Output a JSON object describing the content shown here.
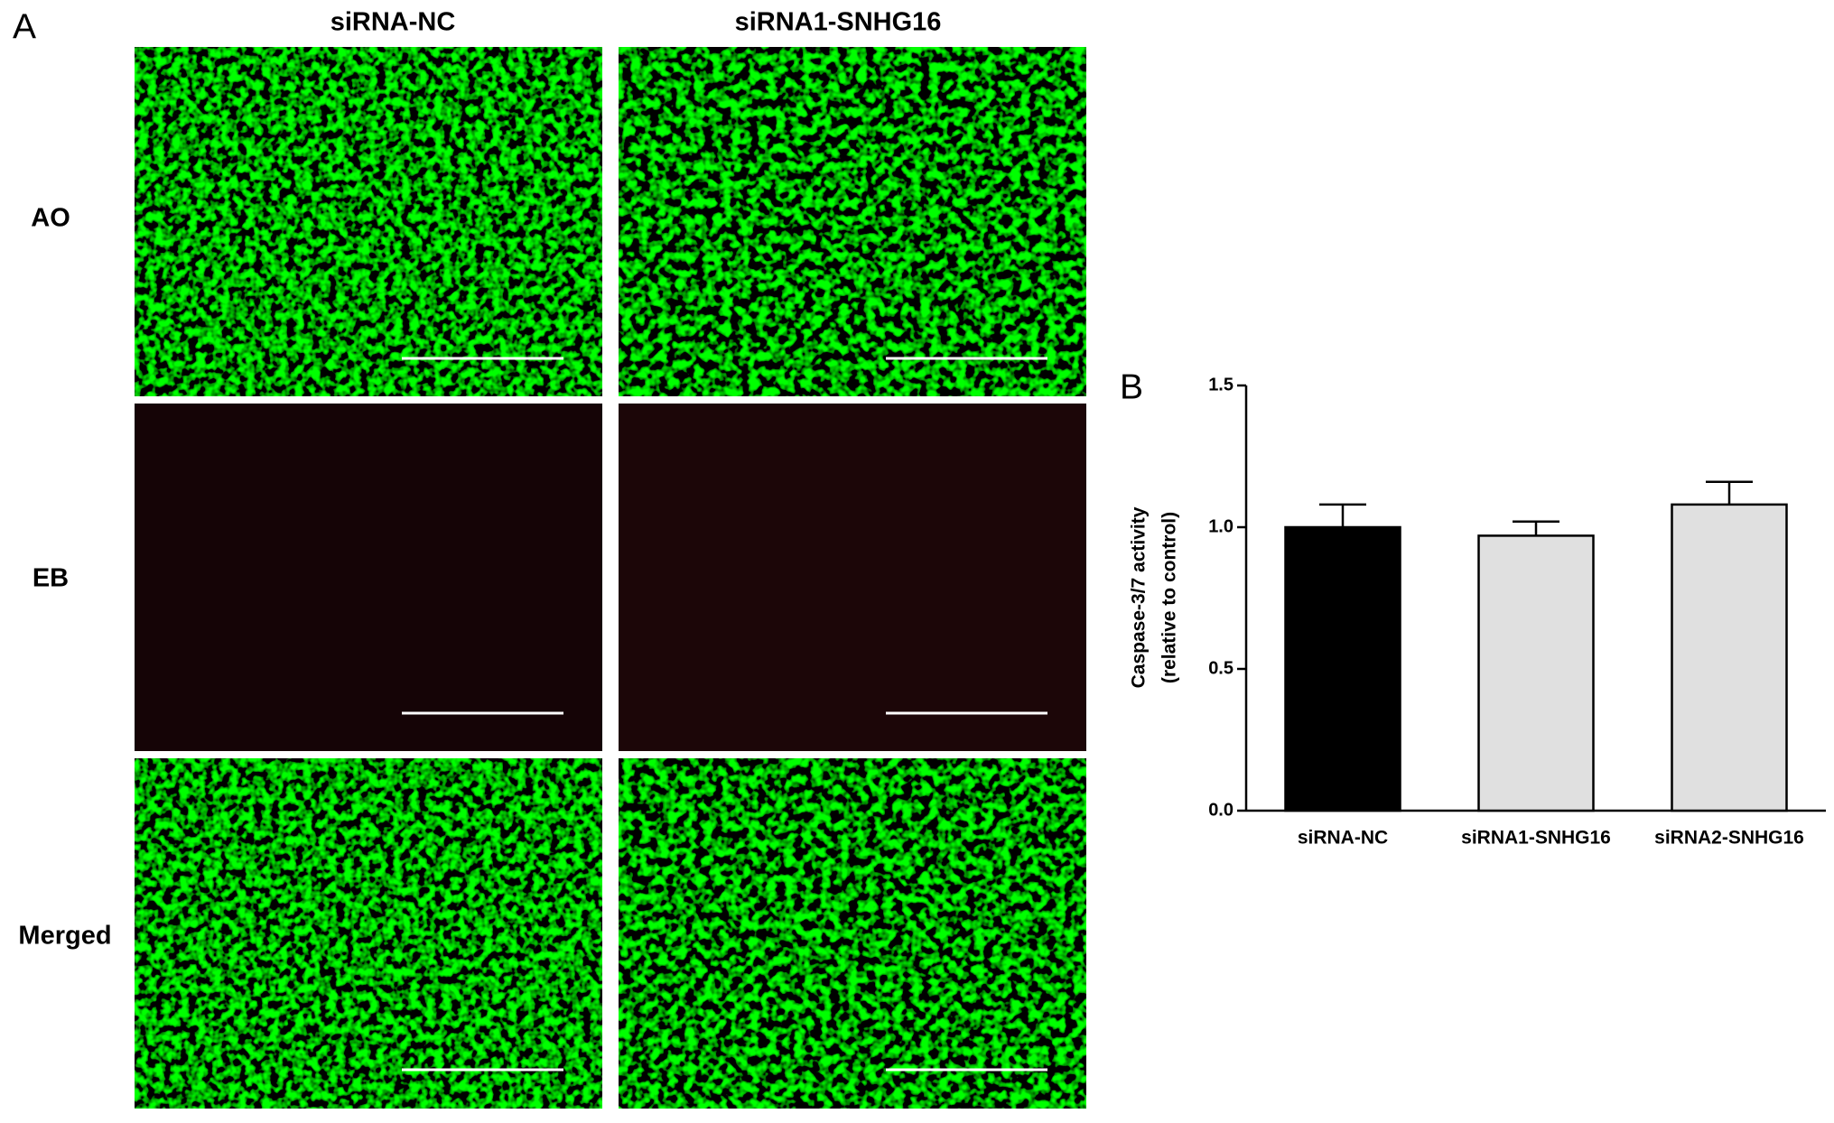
{
  "panel_a": {
    "label": "A",
    "columns": [
      "siRNA-NC",
      "siRNA1-SNHG16"
    ],
    "rows": [
      "AO",
      "EB",
      "Merged"
    ]
  },
  "chart_data": {
    "type": "bar",
    "panel_label": "B",
    "y_label": [
      "Caspase-3/7 activity",
      "(relative to control)"
    ],
    "categories": [
      "siRNA-NC",
      "siRNA1-SNHG16",
      "siRNA2-SNHG16"
    ],
    "values": [
      1.0,
      0.97,
      1.08
    ],
    "errors": [
      0.08,
      0.05,
      0.08
    ],
    "colors": [
      "#000000",
      "#e0e0e0",
      "#e0e0e0"
    ],
    "ylim": [
      0,
      1.5
    ],
    "yticks": [
      {
        "value": 0,
        "label": "0.0"
      },
      {
        "value": 0.5,
        "label": "0.5"
      },
      {
        "value": 1,
        "label": "1.0"
      },
      {
        "value": 1.5,
        "label": "1.5"
      }
    ]
  }
}
